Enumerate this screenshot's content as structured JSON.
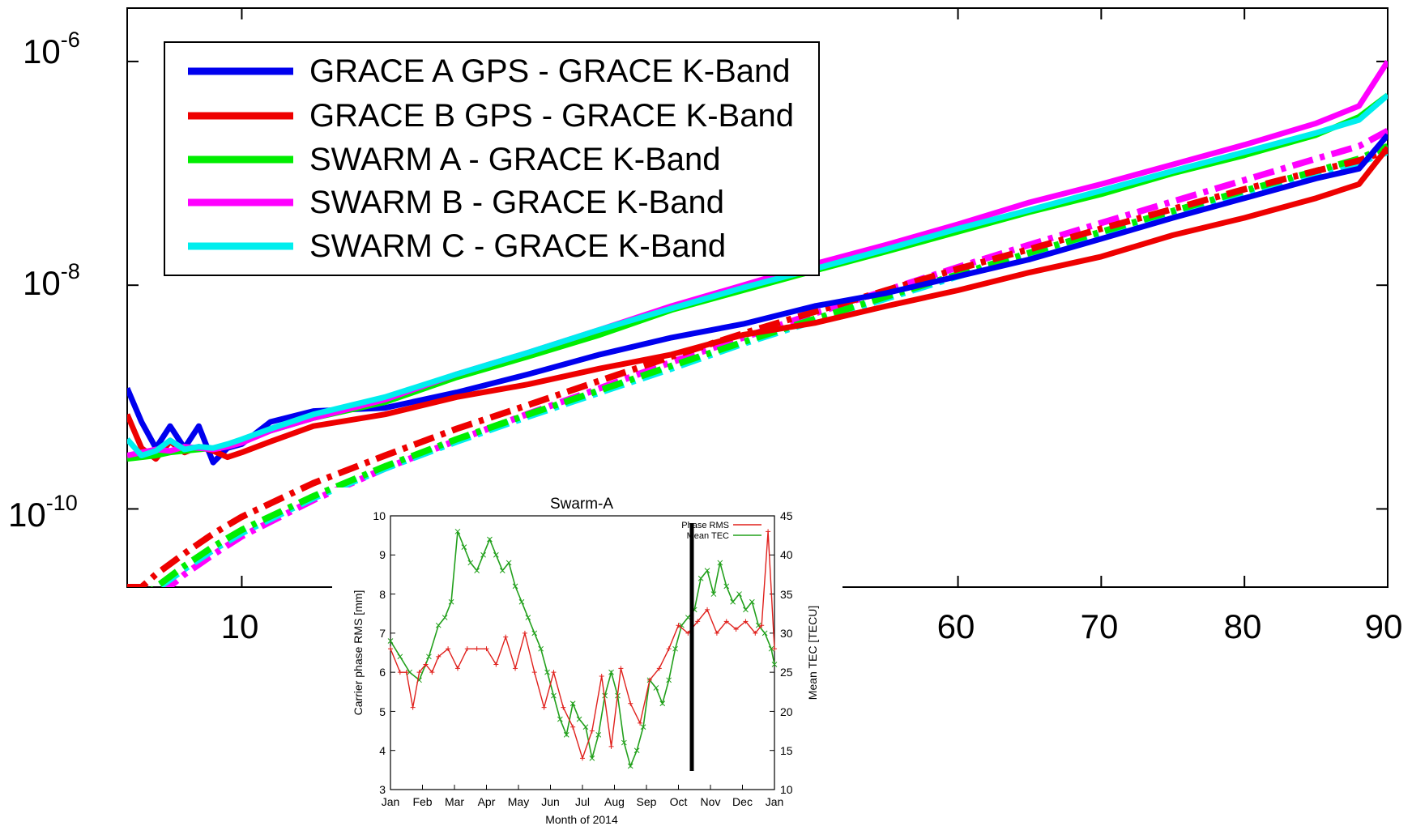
{
  "chart_data": [
    {
      "type": "line",
      "y_scale": "log",
      "xlim": [
        2,
        90
      ],
      "ylim": [
        2e-11,
        3e-06
      ],
      "x_ticks": [
        10,
        60,
        70,
        80,
        90
      ],
      "x_tick_labels": [
        "10",
        "60",
        "70",
        "80",
        "90"
      ],
      "y_ticks": [
        1e-10,
        1e-08,
        1e-06
      ],
      "y_tick_labels": [
        {
          "base": "10",
          "exp": "-10"
        },
        {
          "base": "10",
          "exp": "-8"
        },
        {
          "base": "10",
          "exp": "-6"
        }
      ],
      "grid": false,
      "legend_position": "top-left",
      "colors": {
        "grace_a": "#0000ee",
        "grace_b": "#ee0000",
        "swarm_a": "#00ee00",
        "swarm_b": "#ff00ff",
        "swarm_c": "#00eeee"
      },
      "series": [
        {
          "name": "GRACE A GPS - GRACE K-Band",
          "color": "#0000ee",
          "x": [
            2,
            3,
            4,
            5,
            6,
            7,
            8,
            9,
            10,
            12,
            15,
            20,
            25,
            30,
            35,
            40,
            45,
            50,
            55,
            60,
            65,
            70,
            75,
            80,
            85,
            88,
            90
          ],
          "y": [
            1.2e-09,
            6e-10,
            3.5e-10,
            5.5e-10,
            3.5e-10,
            5.5e-10,
            2.6e-10,
            3.5e-10,
            3.8e-10,
            6e-10,
            7.5e-10,
            8e-10,
            1.1e-09,
            1.6e-09,
            2.4e-09,
            3.4e-09,
            4.5e-09,
            6.5e-09,
            8.5e-09,
            1.2e-08,
            1.7e-08,
            2.6e-08,
            4e-08,
            6e-08,
            9e-08,
            1.1e-07,
            2.2e-07
          ]
        },
        {
          "name": "GRACE B GPS - GRACE K-Band",
          "color": "#ee0000",
          "x": [
            2,
            3,
            4,
            5,
            6,
            7,
            8,
            9,
            10,
            12,
            15,
            20,
            25,
            30,
            35,
            40,
            45,
            50,
            55,
            60,
            65,
            70,
            75,
            80,
            85,
            88,
            90
          ],
          "y": [
            7e-10,
            3.5e-10,
            2.8e-10,
            4e-10,
            3.2e-10,
            3.6e-10,
            3.3e-10,
            2.9e-10,
            3.2e-10,
            4e-10,
            5.5e-10,
            7e-10,
            1e-09,
            1.3e-09,
            1.8e-09,
            2.4e-09,
            3.6e-09,
            4.6e-09,
            6.5e-09,
            9e-09,
            1.3e-08,
            1.8e-08,
            2.8e-08,
            4e-08,
            6e-08,
            8e-08,
            1.7e-07
          ]
        },
        {
          "name": "SWARM A - GRACE K-Band",
          "color": "#00ee00",
          "x": [
            2,
            3,
            4,
            5,
            6,
            7,
            8,
            9,
            10,
            12,
            15,
            20,
            25,
            30,
            35,
            40,
            45,
            50,
            55,
            60,
            65,
            70,
            75,
            80,
            85,
            88,
            90
          ],
          "y": [
            2.8e-10,
            2.9e-10,
            3e-10,
            3.2e-10,
            3.3e-10,
            3.4e-10,
            3.5e-10,
            3.7e-10,
            4e-10,
            5e-10,
            6.5e-10,
            9e-10,
            1.5e-09,
            2.3e-09,
            3.6e-09,
            6e-09,
            9e-09,
            1.35e-08,
            2e-08,
            3e-08,
            4.5e-08,
            6.5e-08,
            1e-07,
            1.45e-07,
            2.2e-07,
            3.2e-07,
            5e-07
          ]
        },
        {
          "name": "SWARM B - GRACE K-Band",
          "color": "#ff00ff",
          "x": [
            2,
            3,
            4,
            5,
            6,
            7,
            8,
            9,
            10,
            12,
            15,
            20,
            25,
            30,
            35,
            40,
            45,
            50,
            55,
            60,
            65,
            70,
            75,
            80,
            85,
            88,
            90
          ],
          "y": [
            3e-10,
            3.2e-10,
            3.4e-10,
            3.3e-10,
            3.6e-10,
            3.5e-10,
            3.4e-10,
            3.6e-10,
            3.9e-10,
            5e-10,
            6.5e-10,
            9.5e-10,
            1.6e-09,
            2.5e-09,
            4e-09,
            6.5e-09,
            1e-08,
            1.55e-08,
            2.3e-08,
            3.5e-08,
            5.5e-08,
            8e-08,
            1.2e-07,
            1.8e-07,
            2.8e-07,
            4e-07,
            1e-06
          ]
        },
        {
          "name": "SWARM C - GRACE K-Band",
          "color": "#00eeee",
          "x": [
            2,
            3,
            4,
            5,
            6,
            7,
            8,
            9,
            10,
            12,
            15,
            20,
            25,
            30,
            35,
            40,
            45,
            50,
            55,
            60,
            65,
            70,
            75,
            80,
            85,
            88,
            90
          ],
          "y": [
            4.2e-10,
            3e-10,
            3.3e-10,
            4.1e-10,
            3.4e-10,
            3.6e-10,
            3.5e-10,
            3.8e-10,
            4.2e-10,
            5.2e-10,
            7e-10,
            1e-09,
            1.6e-09,
            2.5e-09,
            4e-09,
            6.2e-09,
            9.5e-09,
            1.4e-08,
            2.1e-08,
            3.2e-08,
            4.7e-08,
            7e-08,
            1.05e-07,
            1.55e-07,
            2.3e-07,
            3e-07,
            5e-07
          ]
        }
      ],
      "model_curves": {
        "style": "dash-dot",
        "x": [
          2,
          3,
          4,
          6,
          8,
          10,
          15,
          20,
          25,
          30,
          35,
          40,
          45,
          50,
          55,
          60,
          65,
          70,
          75,
          80,
          85,
          88,
          90
        ],
        "grace_b": [
          2e-11,
          2e-11,
          2.6e-11,
          4e-11,
          6e-11,
          8.5e-11,
          1.7e-10,
          3e-10,
          5.2e-10,
          8.5e-10,
          1.4e-09,
          2.3e-09,
          3.7e-09,
          5.8e-09,
          9e-09,
          1.4e-08,
          2.1e-08,
          3.2e-08,
          4.8e-08,
          7.2e-08,
          1.05e-07,
          1.3e-07,
          1.6e-07
        ],
        "swarm_a": [
          1.3e-11,
          1.6e-11,
          2e-11,
          3.1e-11,
          4.6e-11,
          6.5e-11,
          1.3e-10,
          2.4e-10,
          4.2e-10,
          7e-10,
          1.15e-09,
          1.9e-09,
          3.1e-09,
          5e-09,
          7.9e-09,
          1.25e-08,
          1.95e-08,
          3e-08,
          4.6e-08,
          7e-08,
          1.05e-07,
          1.35e-07,
          1.75e-07
        ],
        "swarm_b": [
          1.1e-11,
          1.3e-11,
          1.6e-11,
          2.6e-11,
          3.9e-11,
          5.7e-11,
          1.2e-10,
          2.3e-10,
          4.1e-10,
          7.1e-10,
          1.2e-09,
          2.05e-09,
          3.4e-09,
          5.6e-09,
          9e-09,
          1.45e-08,
          2.3e-08,
          3.6e-08,
          5.6e-08,
          8.7e-08,
          1.35e-07,
          1.75e-07,
          2.4e-07
        ],
        "swarm_c": [
          1.3e-11,
          1.5e-11,
          1.9e-11,
          2.9e-11,
          4.3e-11,
          6.1e-11,
          1.25e-10,
          2.3e-10,
          4e-10,
          6.7e-10,
          1.1e-09,
          1.8e-09,
          3e-09,
          4.8e-09,
          7.6e-09,
          1.2e-08,
          1.85e-08,
          2.85e-08,
          4.4e-08,
          6.6e-08,
          9.8e-08,
          1.25e-07,
          1.55e-07
        ]
      }
    },
    {
      "type": "line",
      "title": "Swarm-A",
      "xlabel": "Month of 2014",
      "ylabel_left": "Carrier phase RMS [mm]",
      "ylabel_right": "Mean TEC [TECU]",
      "x_tick_labels": [
        "Jan",
        "Feb",
        "Mar",
        "Apr",
        "May",
        "Jun",
        "Jul",
        "Aug",
        "Sep",
        "Oct",
        "Nov",
        "Dec",
        "Jan"
      ],
      "xlim": [
        0,
        12
      ],
      "ylim_left": [
        3,
        10
      ],
      "ylim_right": [
        10,
        45
      ],
      "y_ticks_left": [
        "3",
        "4",
        "5",
        "6",
        "7",
        "8",
        "9",
        "10"
      ],
      "y_ticks_right": [
        "10",
        "15",
        "20",
        "25",
        "30",
        "35",
        "40",
        "45"
      ],
      "legend_position": "top-right",
      "marker_line_month": 9.5,
      "series": [
        {
          "name": "Phase RMS",
          "color": "#e0201c",
          "axis": "left",
          "x": [
            0,
            0.3,
            0.5,
            0.7,
            0.9,
            1.1,
            1.3,
            1.5,
            1.8,
            2.1,
            2.4,
            2.7,
            3.0,
            3.3,
            3.6,
            3.9,
            4.2,
            4.5,
            4.8,
            5.1,
            5.4,
            5.7,
            6.0,
            6.3,
            6.6,
            6.9,
            7.2,
            7.5,
            7.8,
            8.1,
            8.4,
            8.7,
            9.0,
            9.3,
            9.6,
            9.9,
            10.2,
            10.5,
            10.8,
            11.1,
            11.4,
            11.6,
            11.8,
            12.0
          ],
          "y": [
            6.6,
            6.0,
            6.0,
            5.1,
            6.0,
            6.2,
            6.0,
            6.4,
            6.6,
            6.1,
            6.6,
            6.6,
            6.6,
            6.2,
            6.9,
            6.1,
            7.0,
            6.0,
            5.1,
            6.0,
            5.1,
            4.6,
            3.8,
            4.5,
            5.9,
            4.1,
            6.1,
            5.2,
            4.7,
            5.8,
            6.1,
            6.6,
            7.2,
            7.0,
            7.3,
            7.6,
            7.0,
            7.3,
            7.1,
            7.3,
            7.0,
            7.2,
            9.6,
            6.6
          ]
        },
        {
          "name": "Mean TEC",
          "color": "#22a01c",
          "axis": "right",
          "x": [
            0,
            0.3,
            0.6,
            0.9,
            1.2,
            1.5,
            1.7,
            1.9,
            2.1,
            2.3,
            2.5,
            2.7,
            2.9,
            3.1,
            3.3,
            3.5,
            3.7,
            3.9,
            4.1,
            4.3,
            4.5,
            4.7,
            4.9,
            5.1,
            5.3,
            5.5,
            5.7,
            5.9,
            6.1,
            6.3,
            6.5,
            6.7,
            6.9,
            7.1,
            7.3,
            7.5,
            7.7,
            7.9,
            8.1,
            8.3,
            8.5,
            8.7,
            8.9,
            9.1,
            9.3,
            9.5,
            9.7,
            9.9,
            10.1,
            10.3,
            10.5,
            10.7,
            10.9,
            11.1,
            11.3,
            11.5,
            11.7,
            11.9,
            12.0
          ],
          "y": [
            29,
            27,
            25,
            24,
            27,
            31,
            32,
            34,
            43,
            41,
            39,
            38,
            40,
            42,
            40,
            38,
            39,
            36,
            34,
            32,
            30,
            28,
            25,
            22,
            19,
            17,
            21,
            19,
            18,
            14,
            17,
            22,
            25,
            22,
            16,
            13,
            15,
            18,
            24,
            23,
            21,
            24,
            28,
            31,
            32,
            33,
            37,
            38,
            35,
            39,
            36,
            34,
            35,
            33,
            34,
            31,
            30,
            28,
            26
          ]
        }
      ]
    }
  ]
}
